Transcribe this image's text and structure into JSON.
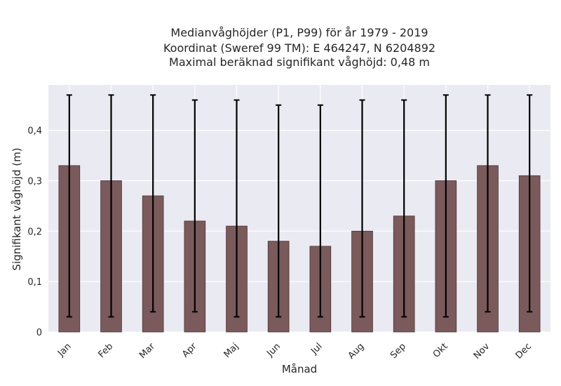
{
  "chart_data": {
    "type": "bar",
    "title_lines": [
      "Medianvåghöjder (P1, P99) för år 1979 - 2019",
      "Koordinat (Sweref 99 TM): E 464247, N 6204892",
      "Maximal beräknad signifikant våghöjd: 0,48 m"
    ],
    "xlabel": "Månad",
    "ylabel": "Signifikant våghöjd (m)",
    "categories": [
      "Jan",
      "Feb",
      "Mar",
      "Apr",
      "Maj",
      "Jun",
      "Jul",
      "Aug",
      "Sep",
      "Okt",
      "Nov",
      "Dec"
    ],
    "values": [
      0.33,
      0.3,
      0.27,
      0.22,
      0.21,
      0.18,
      0.17,
      0.2,
      0.23,
      0.3,
      0.33,
      0.31
    ],
    "error_low": [
      0.03,
      0.03,
      0.04,
      0.04,
      0.03,
      0.03,
      0.03,
      0.03,
      0.03,
      0.03,
      0.04,
      0.04
    ],
    "error_high": [
      0.47,
      0.47,
      0.47,
      0.46,
      0.46,
      0.45,
      0.45,
      0.46,
      0.46,
      0.47,
      0.47,
      0.47
    ],
    "ylim": [
      0,
      0.49
    ],
    "yticks": [
      0,
      0.1,
      0.2,
      0.3,
      0.4
    ],
    "ytick_labels": [
      "0",
      "0,1",
      "0,2",
      "0,3",
      "0,4"
    ],
    "grid": true,
    "colors": {
      "bar": "#7a5a5a",
      "bar_edge": "#4a3434",
      "error": "#000000",
      "plot_bg": "#eaeaf2",
      "grid": "#ffffff"
    }
  }
}
